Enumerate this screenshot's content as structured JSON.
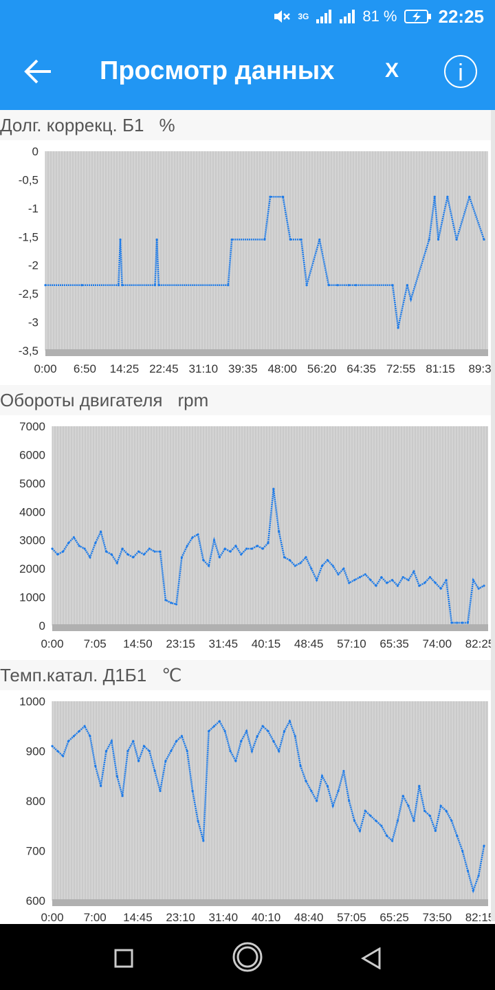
{
  "status": {
    "network": "3G",
    "battery": "81 %",
    "time": "22:25"
  },
  "appbar": {
    "title": "Просмотр данных",
    "close_label": "X",
    "info_label": "i"
  },
  "colors": {
    "accent": "#2196f3",
    "series": "#1e7be8",
    "plot_bg": "#d4d4d4",
    "grid": "#bfbfbf"
  },
  "charts": [
    {
      "title": "Долг. коррекц. Б1",
      "unit": "%"
    },
    {
      "title": "Обороты двигателя",
      "unit": "rpm"
    },
    {
      "title": "Темп.катал. Д1Б1",
      "unit": "℃"
    }
  ],
  "chart_data": [
    {
      "type": "line",
      "title": "Долг. коррекц. Б1",
      "ylabel": "%",
      "ylim": [
        -3.5,
        0
      ],
      "y_ticks": [
        "0",
        "-0,5",
        "-1",
        "-1,5",
        "-2",
        "-2,5",
        "-3",
        "-3,5"
      ],
      "y_tick_values": [
        0,
        -0.5,
        -1,
        -1.5,
        -2,
        -2.5,
        -3,
        -3.5
      ],
      "x_ticks": [
        "0:00",
        "6:50",
        "14:25",
        "22:45",
        "31:10",
        "39:35",
        "48:00",
        "56:20",
        "64:35",
        "72:55",
        "81:15",
        "89:3"
      ],
      "x": [
        0,
        20,
        40,
        41,
        42,
        60,
        61,
        62,
        100,
        102,
        120,
        123,
        130,
        134,
        140,
        143,
        150,
        155,
        160,
        166,
        170,
        190,
        193,
        198,
        200,
        210,
        213,
        215,
        220,
        225,
        232,
        240
      ],
      "y": [
        -2.35,
        -2.35,
        -2.35,
        -1.55,
        -2.35,
        -2.35,
        -1.55,
        -2.35,
        -2.35,
        -1.55,
        -1.55,
        -0.8,
        -0.8,
        -1.55,
        -1.55,
        -2.35,
        -1.55,
        -2.35,
        -2.35,
        -2.35,
        -2.35,
        -2.35,
        -3.1,
        -2.35,
        -2.6,
        -1.55,
        -0.8,
        -1.55,
        -0.8,
        -1.55,
        -0.8,
        -1.55
      ]
    },
    {
      "type": "line",
      "title": "Обороты двигателя",
      "ylabel": "rpm",
      "ylim": [
        0,
        7000
      ],
      "y_ticks": [
        "7000",
        "6000",
        "5000",
        "4000",
        "3000",
        "2000",
        "1000",
        "0"
      ],
      "y_tick_values": [
        7000,
        6000,
        5000,
        4000,
        3000,
        2000,
        1000,
        0
      ],
      "x_ticks": [
        "0:00",
        "7:05",
        "14:50",
        "23:15",
        "31:45",
        "40:15",
        "48:45",
        "57:10",
        "65:35",
        "74:00",
        "82:25"
      ],
      "x": [
        0,
        3,
        6,
        9,
        12,
        15,
        18,
        21,
        24,
        27,
        30,
        33,
        36,
        39,
        42,
        45,
        48,
        51,
        54,
        57,
        60,
        63,
        66,
        69,
        72,
        75,
        78,
        81,
        84,
        87,
        90,
        93,
        96,
        99,
        102,
        105,
        108,
        111,
        114,
        117,
        120,
        123,
        126,
        129,
        132,
        135,
        138,
        141,
        144,
        147,
        150,
        153,
        156,
        159,
        162,
        165,
        168,
        171,
        174,
        177,
        180,
        183,
        186,
        189,
        192,
        195,
        198,
        201,
        204,
        207,
        210,
        213,
        216,
        219,
        222,
        225,
        228,
        231,
        234,
        237,
        240
      ],
      "y": [
        2700,
        2500,
        2600,
        2900,
        3100,
        2800,
        2700,
        2400,
        2900,
        3300,
        2600,
        2500,
        2200,
        2700,
        2500,
        2400,
        2600,
        2500,
        2700,
        2600,
        2600,
        900,
        800,
        750,
        2400,
        2800,
        3100,
        3200,
        2300,
        2100,
        3000,
        2400,
        2700,
        2600,
        2800,
        2500,
        2700,
        2700,
        2800,
        2700,
        2900,
        4800,
        3300,
        2400,
        2300,
        2100,
        2200,
        2400,
        2000,
        1600,
        2100,
        2300,
        2100,
        1800,
        2000,
        1500,
        1600,
        1700,
        1800,
        1600,
        1400,
        1700,
        1500,
        1600,
        1400,
        1700,
        1600,
        1900,
        1400,
        1500,
        1700,
        1500,
        1300,
        1600,
        100,
        100,
        100,
        100,
        1600,
        1300,
        1400
      ]
    },
    {
      "type": "line",
      "title": "Темп.катал. Д1Б1",
      "ylabel": "℃",
      "ylim": [
        600,
        1000
      ],
      "y_ticks": [
        "1000",
        "900",
        "800",
        "700",
        "600"
      ],
      "y_tick_values": [
        1000,
        900,
        800,
        700,
        600
      ],
      "x_ticks": [
        "0:00",
        "7:00",
        "14:45",
        "23:10",
        "31:40",
        "40:10",
        "48:40",
        "57:05",
        "65:25",
        "73:50",
        "82:15"
      ],
      "x": [
        0,
        3,
        6,
        9,
        12,
        15,
        18,
        21,
        24,
        27,
        30,
        33,
        36,
        39,
        42,
        45,
        48,
        51,
        54,
        57,
        60,
        63,
        66,
        69,
        72,
        75,
        78,
        81,
        84,
        87,
        90,
        93,
        96,
        99,
        102,
        105,
        108,
        111,
        114,
        117,
        120,
        123,
        126,
        129,
        132,
        135,
        138,
        141,
        144,
        147,
        150,
        153,
        156,
        159,
        162,
        165,
        168,
        171,
        174,
        177,
        180,
        183,
        186,
        189,
        192,
        195,
        198,
        201,
        204,
        207,
        210,
        213,
        216,
        219,
        222,
        225,
        228,
        231,
        234,
        237,
        240
      ],
      "y": [
        910,
        900,
        890,
        920,
        930,
        940,
        950,
        930,
        870,
        830,
        900,
        920,
        850,
        810,
        900,
        920,
        880,
        910,
        900,
        860,
        820,
        880,
        900,
        920,
        930,
        900,
        820,
        760,
        720,
        940,
        950,
        960,
        940,
        900,
        880,
        920,
        940,
        900,
        930,
        950,
        940,
        920,
        900,
        940,
        960,
        930,
        870,
        840,
        820,
        800,
        850,
        830,
        790,
        820,
        860,
        800,
        760,
        740,
        780,
        770,
        760,
        750,
        730,
        720,
        760,
        810,
        790,
        760,
        830,
        780,
        770,
        740,
        790,
        780,
        760,
        730,
        700,
        660,
        620,
        650,
        710
      ]
    }
  ]
}
